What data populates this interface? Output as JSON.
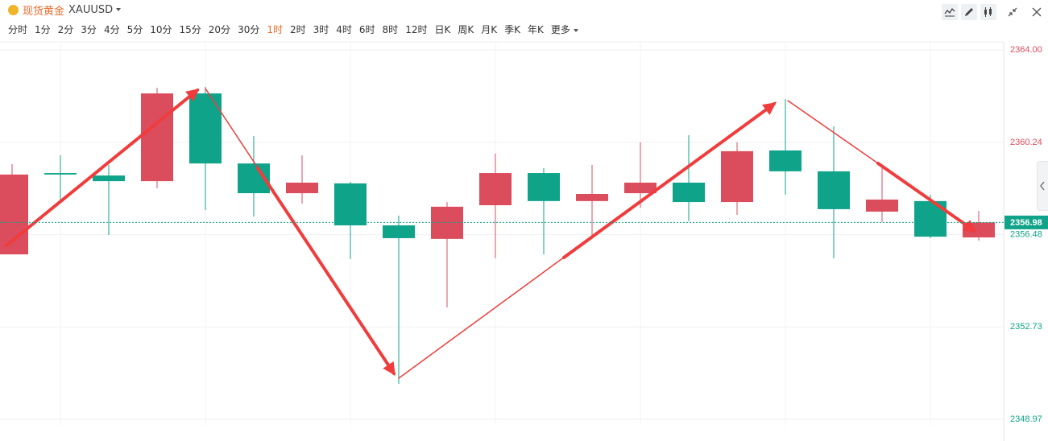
{
  "header": {
    "name": "现货黄金",
    "symbol": "XAUUSD"
  },
  "timeframes": [
    "分时",
    "1分",
    "2分",
    "3分",
    "4分",
    "5分",
    "10分",
    "15分",
    "20分",
    "30分",
    "1时",
    "2时",
    "3时",
    "4时",
    "6时",
    "8时",
    "12时",
    "日K",
    "周K",
    "月K",
    "季K",
    "年K",
    "更多"
  ],
  "active_timeframe": "1时",
  "chart_data": {
    "type": "candlestick",
    "open": [
      2355.68,
      2358.99,
      2358.89,
      2358.66,
      2362.23,
      2359.38,
      2358.17,
      2358.57,
      2356.86,
      2356.31,
      2357.68,
      2358.99,
      2357.85,
      2358.17,
      2358.6,
      2357.81,
      2359.91,
      2359.06,
      2357.42,
      2357.85,
      2356.37
    ],
    "high": [
      2359.35,
      2359.71,
      2359.32,
      2362.46,
      2362.5,
      2360.5,
      2359.71,
      2358.63,
      2357.26,
      2357.81,
      2359.78,
      2359.19,
      2359.32,
      2360.24,
      2360.53,
      2360.24,
      2362.0,
      2360.89,
      2359.22,
      2358.11,
      2357.45
    ],
    "low": [
      2355.68,
      2357.85,
      2356.47,
      2358.37,
      2357.48,
      2357.22,
      2357.75,
      2355.49,
      2350.41,
      2353.52,
      2355.52,
      2355.68,
      2356.44,
      2357.58,
      2357.03,
      2357.29,
      2358.11,
      2355.52,
      2356.99,
      2356.34,
      2356.24
    ],
    "close": [
      2358.93,
      2358.93,
      2358.66,
      2362.23,
      2359.38,
      2358.17,
      2358.6,
      2356.86,
      2356.34,
      2357.62,
      2358.99,
      2357.85,
      2358.14,
      2358.6,
      2357.81,
      2359.88,
      2359.06,
      2357.52,
      2357.91,
      2356.4,
      2356.98
    ],
    "up_color": "#db4c5c",
    "down_color": "#0fa38a",
    "ylim": [
      2348.74,
      2364.33
    ],
    "yticks": [
      {
        "value": 2364,
        "label": "2364.00"
      },
      2360.24,
      2356.48,
      2352.73,
      2348.97
    ],
    "current_price": 2356.98,
    "grid": true
  }
}
